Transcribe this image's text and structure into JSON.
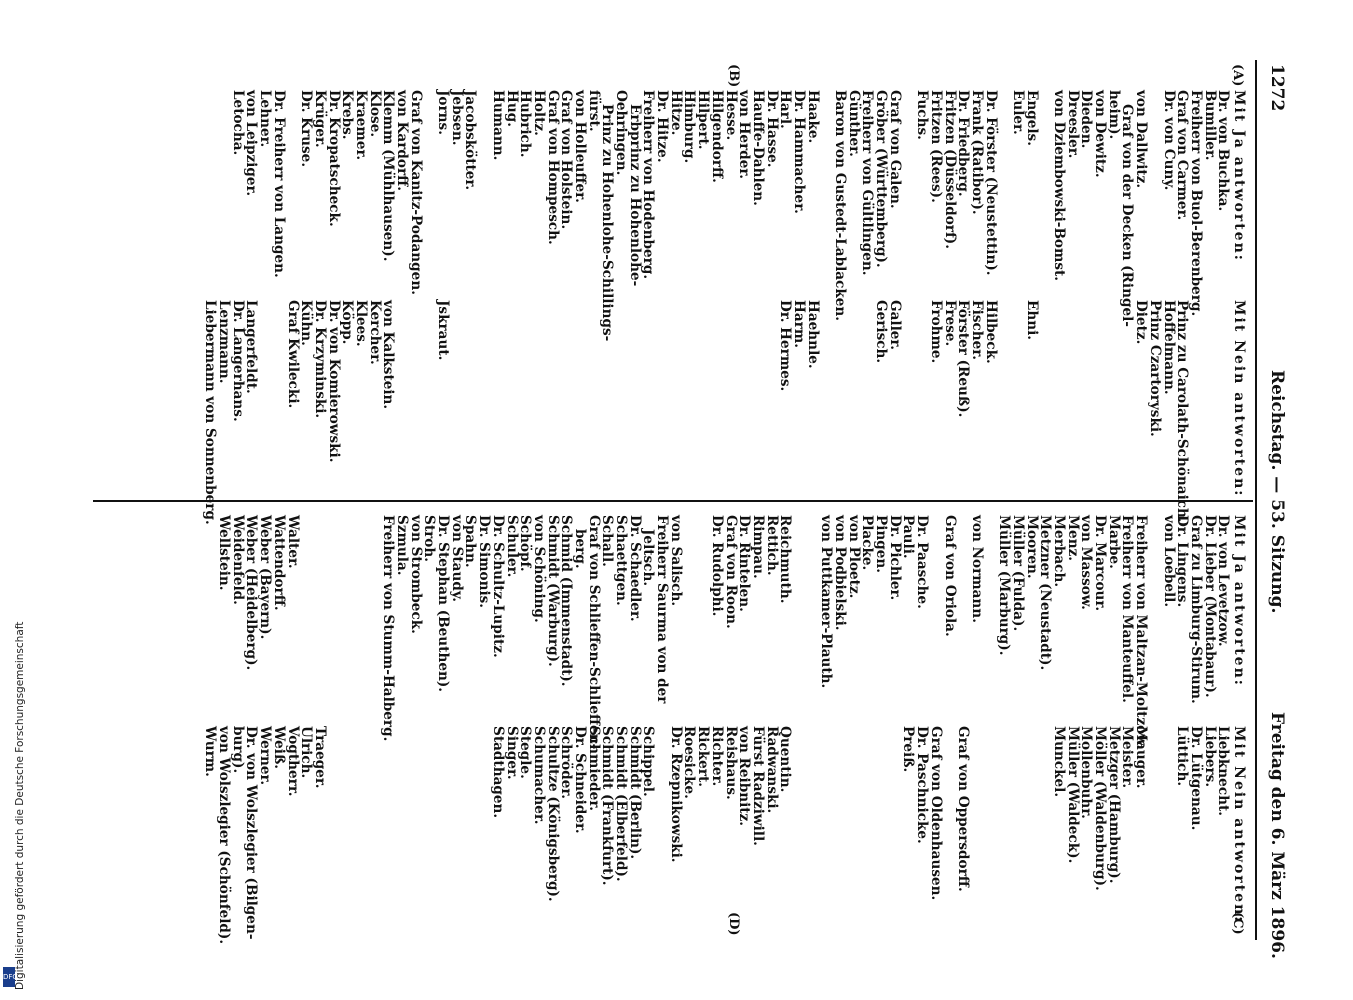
{
  "header": {
    "page_number": "1272",
    "center": "Reichstag. — 53. Sitzung.",
    "right": "Freitag den 6. März 1896."
  },
  "footer": {
    "note": "Digitalisierung gefördert durch die Deutsche Forschungsgemeinschaft",
    "logo": "DFG"
  },
  "markers": {
    "a": "(A)",
    "b": "(B)",
    "c": "(C)",
    "d": "(D)"
  },
  "left": {
    "yes_heading": "Mit Ja antworten:",
    "no_heading": "Mit Nein antworten:",
    "yes_lines": [
      "Dr. von Buchka.",
      "Bumiller.",
      "Freiherr von Buol-Berenberg.",
      "Graf von Carmer.",
      "Dr. von Cuny.",
      "",
      "von Dallwitz.",
      "Graf von der Decken (Ringel-",
      "heim).",
      "von Dewitz.",
      "Dieden.",
      "Dreesler.",
      "von Dziembowski-Bomst.",
      "",
      "Engels.",
      "Euler.",
      "",
      "Dr. Förster (Neustettin).",
      "Frank (Ratibor).",
      "Dr. Friedberg.",
      "Fritzen (Düsseldorf).",
      "Fritzen (Rees).",
      "Fuchs.",
      "",
      "Graf von Galen.",
      "Gröber (Württemberg).",
      "Freiherr von Gültlingen.",
      "Günther.",
      "Baron von Gustedt-Lablacken.",
      "",
      "Haake.",
      "Dr. Hammacher.",
      "Harl.",
      "Dr. Hasse.",
      "Hauffe-Dahlen.",
      "von Herder.",
      "Hesse.",
      "Hilgendorff.",
      "Hilpert.",
      "Himburg.",
      "Hitze.",
      "Dr. Hitze.",
      "Freiherr von Hodenberg.",
      "Erbprinz zu Hohenlohe-",
      "Oehringen.",
      "Prinz zu Hohenlohe-Schillings-",
      "fürst.",
      "von Holleuffer.",
      "Graf von Holstein.",
      "Graf von Hompesch.",
      "Holtz.",
      "Hubrich.",
      "Hug.",
      "Humann.",
      "",
      "Jacobskötter.",
      "Jebsen.",
      "Jorns.",
      "",
      "Graf von Kanitz-Podangen.",
      "von Kardorff.",
      "Klemm (Mühlhausen).",
      "Klose.",
      "Kraemer.",
      "Krebs.",
      "Dr. Kropatscheck.",
      "Krüger.",
      "Dr. Kruse.",
      "",
      "Dr. Freiherr von Langen.",
      "Lehner.",
      "von Leipziger.",
      "Letocha."
    ],
    "indent_lines": [
      7,
      43,
      45
    ],
    "b_line": 37,
    "no_lines": [
      "",
      "",
      "",
      "Prinz zu Carolath-Schönaich.",
      "Hoffelmann.",
      "Prinz Czartoryski.",
      "Dietz.",
      "",
      "",
      "",
      "",
      "",
      "",
      "",
      "Ehni.",
      "",
      "",
      "Hilbeck.",
      "Fischer.",
      "Förster (Reuß).",
      "Frese.",
      "Frohme.",
      "",
      "",
      "Galler.",
      "Gerisch.",
      "",
      "",
      "",
      "",
      "Haehnle.",
      "Harm.",
      "Dr. Hermes.",
      "",
      "",
      "",
      "",
      "",
      "",
      "",
      "",
      "",
      "",
      "",
      "",
      "",
      "",
      "",
      "",
      "",
      "",
      "",
      "",
      "",
      "",
      "",
      "",
      "Jskraut.",
      "",
      "",
      "",
      "von Kalkstein.",
      "Kercher.",
      "Klees.",
      "Köpp.",
      "Dr. von Komierowski.",
      "Dr. Krzyminski.",
      "Kühn.",
      "Graf Kwilecki.",
      "",
      "",
      "Langerfeldt.",
      "Dr. Langerhans.",
      "Lenzmann.",
      "Liebermann von Sonnenberg."
    ]
  },
  "right": {
    "yes_heading": "Mit Ja antworten:",
    "no_heading": "Mit Nein antworten:",
    "yes_lines": [
      "Dr. von Levetzow.",
      "Dr. Lieber (Montabaur).",
      "Graf zu Limburg-Stirum.",
      "Dr. Lingens.",
      "von Loebell.",
      "",
      "Freiherr von Maltzan-Moltzow.",
      "Freiherr von Manteuffel.",
      "Marbe.",
      "Dr. Marcour.",
      "von Massow.",
      "Menz.",
      "Merbach.",
      "Metzner (Neustadt).",
      "Mooren.",
      "Müller (Fulda).",
      "Müller (Marburg).",
      "",
      "von Normann.",
      "",
      "Graf von Oriola.",
      "",
      "Dr. Paasche.",
      "Pauli.",
      "Dr. Pichler.",
      "Pingen.",
      "Placke.",
      "von Ploetz.",
      "von Podbielski.",
      "von Puttkamer-Plauth.",
      "",
      "",
      "Reichmuth.",
      "Rettich.",
      "Rimpau.",
      "Dr. Rintelen.",
      "Graf von Roon.",
      "Dr. Rudolphi.",
      "",
      "",
      "von Salisch.",
      "Freiherr Saurma von der",
      "Jeltsch.",
      "Dr. Schaedler.",
      "Schaettgen.",
      "Schall.",
      "Graf von Schlieffen-Schlieffen-",
      "berg.",
      "Schmid (Immenstadt).",
      "Schmidt (Warburg).",
      "von Schöning.",
      "Schöpf.",
      "Schuler.",
      "Dr. Schultz-Lupitz.",
      "Dr. Simonis.",
      "Spahn.",
      "von Staudy.",
      "Dr. Stephan (Beuthen).",
      "Stroh.",
      "von Strombeck.",
      "Szmula.",
      "Freiherr von Stumm-Halberg.",
      "",
      "",
      "",
      "",
      "",
      "",
      "Walter.",
      "Wattendorff.",
      "Weber (Bayern).",
      "Weber (Heidelberg).",
      "Weidenfeld.",
      "Wellstein."
    ],
    "indent_lines": [
      42,
      47
    ],
    "no_lines": [
      "Liebknecht.",
      "Liebers.",
      "Dr. Lütgenau.",
      "Lüttich.",
      "",
      "",
      "Mauger.",
      "Meister.",
      "Metzger (Hamburg).",
      "Möller (Waldenburg).",
      "Mollenbuhr.",
      "Müller (Waldeck).",
      "Munckel.",
      "",
      "",
      "",
      "",
      "",
      "",
      "Graf von Oppersdorff.",
      "",
      "Graf von Oldenhausen.",
      "Dr. Paschnicke.",
      "Preiß.",
      "",
      "",
      "",
      "",
      "",
      "",
      "",
      "",
      "Quentin.",
      "Radwanski.",
      "Fürst Radziwill.",
      "von Reibnitz.",
      "Reishaus.",
      "Richter.",
      "Rickert.",
      "Roesicke.",
      "Dr. Rzepnikowski.",
      "",
      "Schippel.",
      "Schmidt (Berlin).",
      "Schmidt (Elberfeld).",
      "Schmidt (Frankfurt).",
      "Schmieder.",
      "Dr. Schneider.",
      "Schröder.",
      "Schultze (Königsberg).",
      "Schumacher.",
      "Stegle.",
      "Singer.",
      "Stadthagen.",
      "",
      "",
      "",
      "",
      "",
      "",
      "",
      "",
      "",
      "",
      "",
      "",
      "Traeger.",
      "Ulrich.",
      "Vogtherr.",
      "Weiß.",
      "Werner.",
      "Dr. von Wolszlegier (Bilgen-",
      "burg).",
      "von Wolszlegier (Schönfeld).",
      "Wurm."
    ],
    "no_indent_lines": [
      78
    ]
  }
}
